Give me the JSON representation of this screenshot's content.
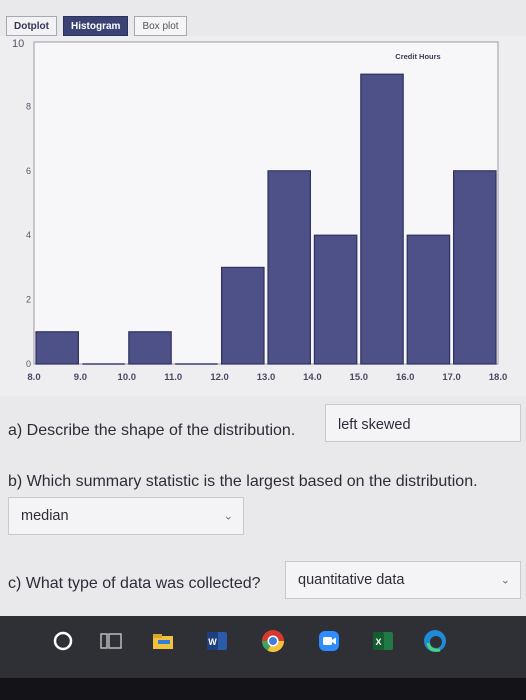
{
  "tabs": [
    {
      "label": "Dotplot",
      "active": false
    },
    {
      "label": "Histogram",
      "active": true
    },
    {
      "label": "Box plot",
      "active": false
    }
  ],
  "chart_data": {
    "type": "bar",
    "title": "Credit Hours",
    "xlabel": "",
    "ylabel": "",
    "x_ticks": [
      "8.0",
      "9.0",
      "10.0",
      "11.0",
      "12.0",
      "13.0",
      "14.0",
      "15.0",
      "16.0",
      "17.0",
      "18.0"
    ],
    "y_ticks": [
      "0",
      "2",
      "4",
      "6",
      "8",
      "10"
    ],
    "bins": [
      {
        "from": 8,
        "to": 9,
        "count": 1
      },
      {
        "from": 9,
        "to": 10,
        "count": 0
      },
      {
        "from": 10,
        "to": 11,
        "count": 1
      },
      {
        "from": 11,
        "to": 12,
        "count": 0
      },
      {
        "from": 12,
        "to": 13,
        "count": 3
      },
      {
        "from": 13,
        "to": 14,
        "count": 6
      },
      {
        "from": 14,
        "to": 15,
        "count": 4
      },
      {
        "from": 15,
        "to": 16,
        "count": 9
      },
      {
        "from": 16,
        "to": 17,
        "count": 4
      },
      {
        "from": 17,
        "to": 18,
        "count": 6
      }
    ],
    "xlim": [
      8,
      18
    ],
    "ylim": [
      0,
      10
    ],
    "bar_color": "#4d5187",
    "grid": false
  },
  "questions": {
    "a": {
      "text": "a) Describe the shape of the distribution.",
      "answer": "left skewed"
    },
    "b": {
      "text": "b) Which summary statistic is the largest based on the distribution.",
      "answer": "median"
    },
    "c": {
      "text": "c) What type of data was collected?",
      "answer": "quantitative data"
    }
  },
  "taskbar": {
    "icons": [
      "search-circle-icon",
      "task-view-icon",
      "file-explorer-icon",
      "word-icon",
      "chrome-icon",
      "zoom-icon",
      "excel-icon",
      "edge-icon"
    ]
  }
}
